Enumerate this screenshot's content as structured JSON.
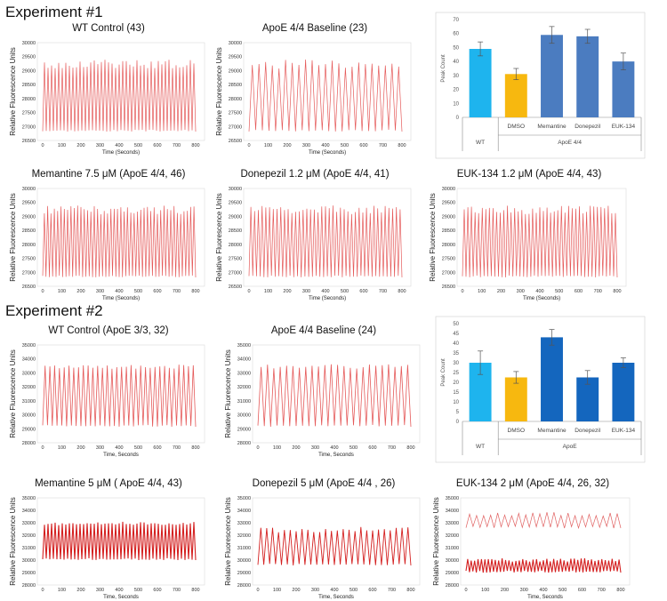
{
  "experiments": [
    {
      "heading": "Experiment #1",
      "line_panels": [
        {
          "title": "WT Control  (43)",
          "ylabel": "Relative Fluorescence Units",
          "xlabel": "Time (Seconds)",
          "yticks": [
            "26500",
            "27000",
            "27500",
            "28000",
            "28500",
            "29000",
            "29500",
            "30000"
          ],
          "xticks": [
            "0",
            "100",
            "200",
            "300",
            "400",
            "500",
            "600",
            "700",
            "800"
          ],
          "peaks": 43
        },
        {
          "title": "ApoE 4/4 Baseline  (23)",
          "ylabel": "Relative Fluorescence Units",
          "xlabel": "Time (Seconds)",
          "yticks": [
            "26500",
            "27000",
            "27500",
            "28000",
            "28500",
            "29000",
            "29500",
            "30000"
          ],
          "xticks": [
            "0",
            "100",
            "200",
            "300",
            "400",
            "500",
            "600",
            "700",
            "800"
          ],
          "peaks": 23
        },
        {
          "title": "Memantine 7.5 μM  (ApoE 4/4, 46)",
          "ylabel": "Relative Fluorescence Units",
          "xlabel": "Time (Seconds)",
          "yticks": [
            "26500",
            "27000",
            "27500",
            "28000",
            "28500",
            "29000",
            "29500",
            "30000"
          ],
          "xticks": [
            "0",
            "100",
            "200",
            "300",
            "400",
            "500",
            "600",
            "700",
            "800"
          ],
          "peaks": 46
        },
        {
          "title": "Donepezil 1.2 μM  (ApoE 4/4, 41)",
          "ylabel": "Relative Fluorescence Units",
          "xlabel": "Time (Seconds)",
          "yticks": [
            "26500",
            "27000",
            "27500",
            "28000",
            "28500",
            "29000",
            "29500",
            "30000"
          ],
          "xticks": [
            "0",
            "100",
            "200",
            "300",
            "400",
            "500",
            "600",
            "700",
            "800"
          ],
          "peaks": 41
        },
        {
          "title": "EUK-134  1.2 μM  (ApoE 4/4, 43)",
          "ylabel": "Relative Fluorescence Units",
          "xlabel": "Time (Seconds)",
          "yticks": [
            "26500",
            "27000",
            "27500",
            "28000",
            "28500",
            "29000",
            "29500",
            "30000"
          ],
          "xticks": [
            "0",
            "100",
            "200",
            "300",
            "400",
            "500",
            "600",
            "700",
            "800"
          ],
          "peaks": 43
        }
      ]
    },
    {
      "heading": "Experiment #2",
      "line_panels": [
        {
          "title": "WT Control  (ApoE 3/3, 32)",
          "ylabel": "Relative Fluorescence Units",
          "xlabel": "Time, Seconds",
          "yticks": [
            "28000",
            "29000",
            "30000",
            "31000",
            "32000",
            "33000",
            "34000",
            "35000"
          ],
          "xticks": [
            "0",
            "100",
            "200",
            "300",
            "400",
            "500",
            "600",
            "700",
            "800"
          ],
          "peaks": 32
        },
        {
          "title": "ApoE 4/4 Baseline  (24)",
          "ylabel": "Relative Fluorescence Units",
          "xlabel": "Time, Seconds",
          "yticks": [
            "28000",
            "29000",
            "30000",
            "31000",
            "32000",
            "33000",
            "34000",
            "35000"
          ],
          "xticks": [
            "0",
            "100",
            "200",
            "300",
            "400",
            "500",
            "600",
            "700",
            "800"
          ],
          "peaks": 24
        },
        {
          "title": "Memantine 5 μM  ( ApoE 4/4, 43)",
          "ylabel": "Relative Fluorescence Units",
          "xlabel": "Time, Seconds",
          "yticks": [
            "28000",
            "29000",
            "30000",
            "31000",
            "32000",
            "33000",
            "34000",
            "35000"
          ],
          "xticks": [
            "0",
            "100",
            "200",
            "300",
            "400",
            "500",
            "600",
            "700",
            "800"
          ],
          "peaks": 43
        },
        {
          "title": "Donepezil 5 μM  (ApoE 4/4 , 26)",
          "ylabel": "Relative Fluorescence Units",
          "xlabel": "Time, Seconds",
          "yticks": [
            "28000",
            "29000",
            "30000",
            "31000",
            "32000",
            "33000",
            "34000",
            "35000"
          ],
          "xticks": [
            "0",
            "100",
            "200",
            "300",
            "400",
            "500",
            "600",
            "700",
            "800"
          ],
          "peaks": 26
        },
        {
          "title": "EUK-134 2 μM  (ApoE 4/4, 26, 32)",
          "ylabel": "Relative Fluorescence Units",
          "xlabel": "Time, Seconds",
          "yticks": [
            "28000",
            "29000",
            "30000",
            "31000",
            "32000",
            "33000",
            "34000",
            "35000"
          ],
          "xticks": [
            "0",
            "100",
            "200",
            "300",
            "400",
            "500",
            "600",
            "700",
            "800"
          ],
          "peaks": 32
        }
      ]
    }
  ],
  "chart_data": [
    {
      "type": "bar",
      "ylabel": "Peak Count",
      "ylim": [
        0,
        70
      ],
      "yticks": [
        "0",
        "10",
        "20",
        "30",
        "40",
        "50",
        "60",
        "70"
      ],
      "categories": [
        "WT",
        "DMSO",
        "Memantine",
        "Donepezil",
        "EUK-134"
      ],
      "group_label": "ApoE 4/4",
      "values": [
        49,
        31,
        59,
        58,
        40
      ],
      "errors": [
        5,
        4,
        6,
        5,
        6
      ],
      "colors": [
        "#1eb4ee",
        "#f7b80f",
        "#4b7cc0",
        "#4b7cc0",
        "#4b7cc0"
      ]
    },
    {
      "type": "bar",
      "ylabel": "Peak Count",
      "ylim": [
        0,
        50
      ],
      "yticks": [
        "0",
        "5",
        "10",
        "15",
        "20",
        "25",
        "30",
        "35",
        "40",
        "45",
        "50"
      ],
      "categories": [
        "WT",
        "DMSO",
        "Memantine",
        "Donepezil",
        "EUK-134"
      ],
      "group_label": "ApoE",
      "values": [
        30,
        22.5,
        43,
        22.5,
        30
      ],
      "errors": [
        6,
        3,
        4,
        3.5,
        2.5
      ],
      "colors": [
        "#1eb4ee",
        "#f7b80f",
        "#1466be",
        "#1466be",
        "#1466be"
      ]
    }
  ]
}
